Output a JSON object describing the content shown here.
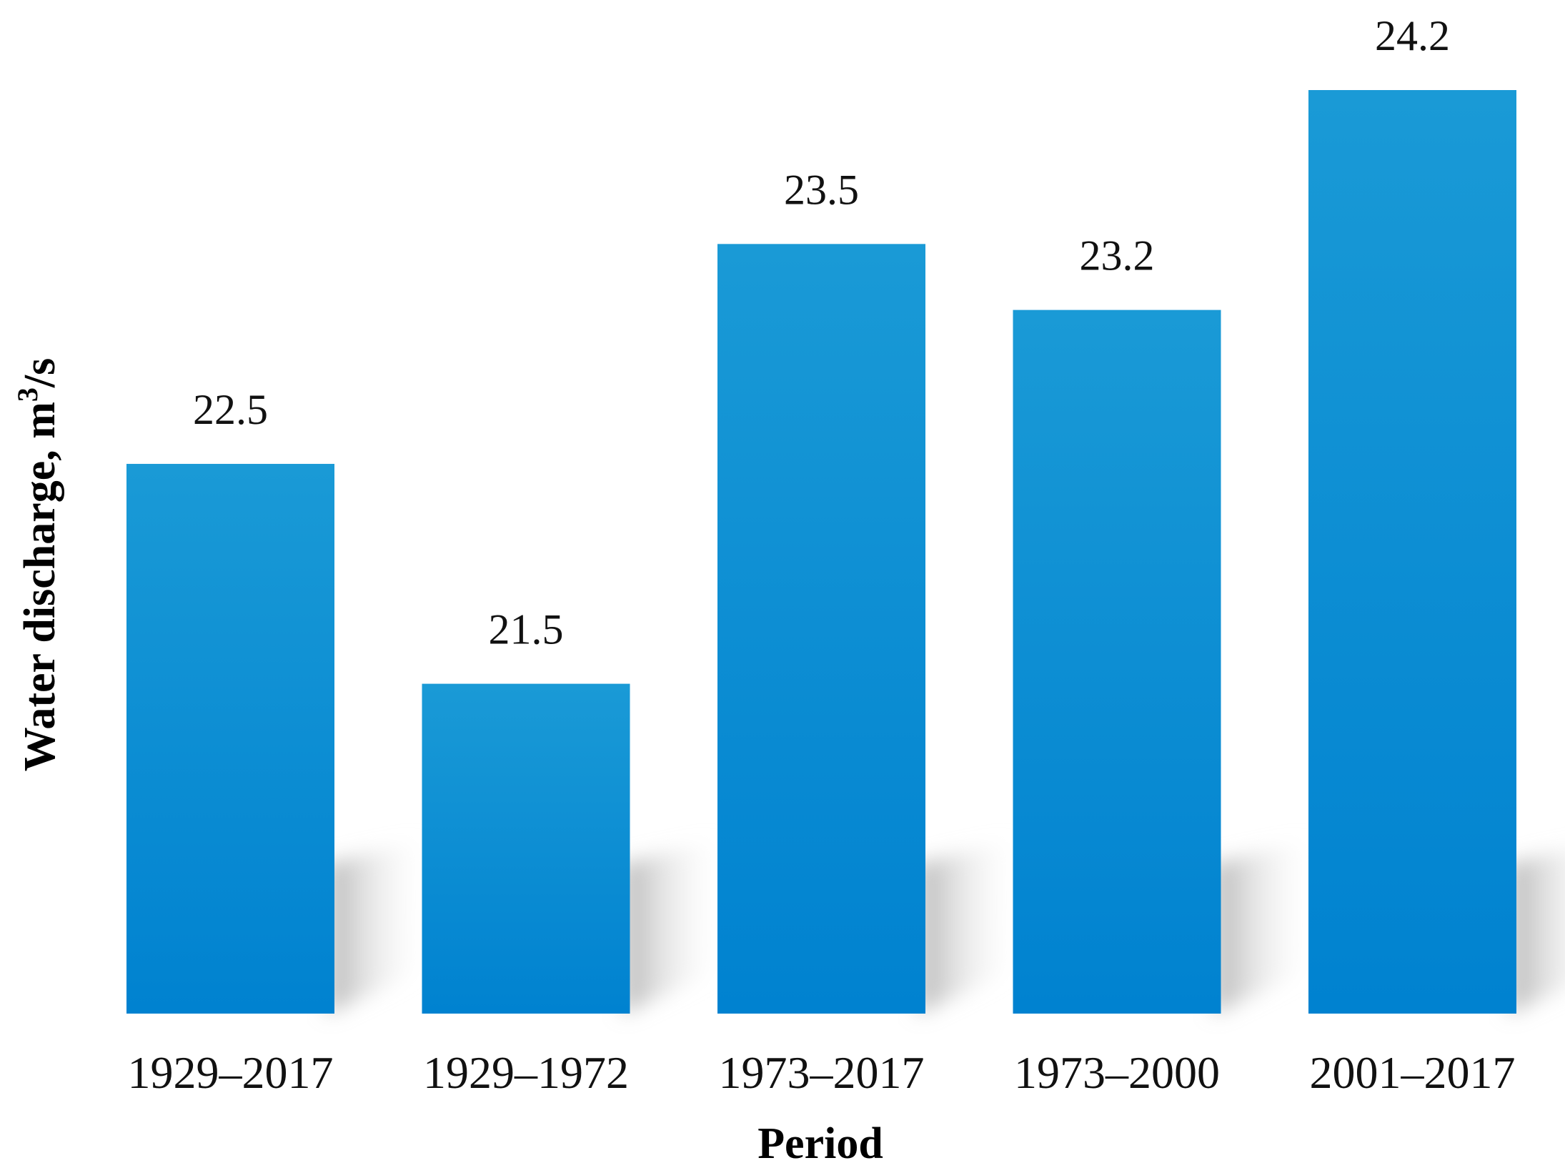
{
  "chart_data": {
    "type": "bar",
    "title": "",
    "xlabel": "Period",
    "ylabel": "Water discharge, m³/s",
    "ylabel_parts": {
      "prefix": "Water discharge, m",
      "superscript": "3",
      "suffix": "/s"
    },
    "categories": [
      "1929–2017",
      "1929–1972",
      "1973–2017",
      "1973–2000",
      "2001–2017"
    ],
    "values": [
      22.5,
      21.5,
      23.5,
      23.2,
      24.2
    ],
    "value_labels": [
      "22.5",
      "21.5",
      "23.5",
      "23.2",
      "24.2"
    ],
    "ylim": [
      20,
      24.2
    ],
    "grid": false,
    "legend": "none",
    "colors": {
      "bar_top": "#1a9ad6",
      "bar_bottom": "#0082d0",
      "shadow": "#bdbdbd",
      "text": "#111111"
    }
  }
}
